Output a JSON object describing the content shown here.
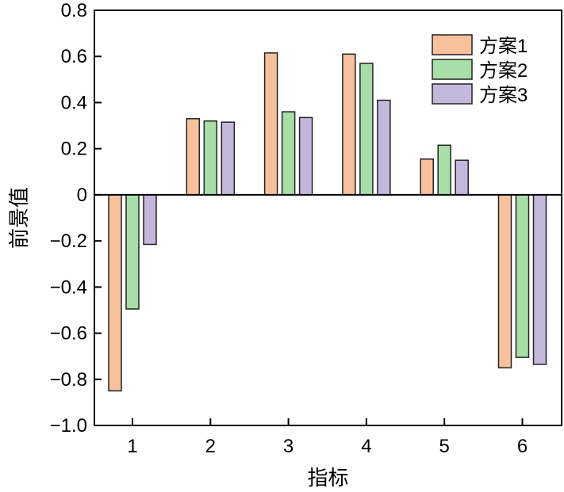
{
  "chart_data": {
    "type": "bar",
    "xlabel": "指标",
    "ylabel": "前景值",
    "categories": [
      "1",
      "2",
      "3",
      "4",
      "5",
      "6"
    ],
    "ylim": [
      -1.0,
      0.8
    ],
    "yticks": [
      "0.8",
      "0.6",
      "0.4",
      "0.2",
      "0",
      "−0.2",
      "−0.4",
      "−0.6",
      "−0.8",
      "−1.0"
    ],
    "ytick_values": [
      0.8,
      0.6,
      0.4,
      0.2,
      0,
      -0.2,
      -0.4,
      -0.6,
      -0.8,
      -1.0
    ],
    "grid": false,
    "legend_position": "top-right",
    "series": [
      {
        "name": "方案1",
        "color": "#f6c19c",
        "values": [
          -0.85,
          0.33,
          0.615,
          0.61,
          0.155,
          -0.75
        ]
      },
      {
        "name": "方案2",
        "color": "#a8dea8",
        "values": [
          -0.495,
          0.32,
          0.36,
          0.57,
          0.215,
          -0.705
        ]
      },
      {
        "name": "方案3",
        "color": "#c5b7dc",
        "values": [
          -0.215,
          0.315,
          0.335,
          0.41,
          0.15,
          -0.735
        ]
      }
    ]
  }
}
